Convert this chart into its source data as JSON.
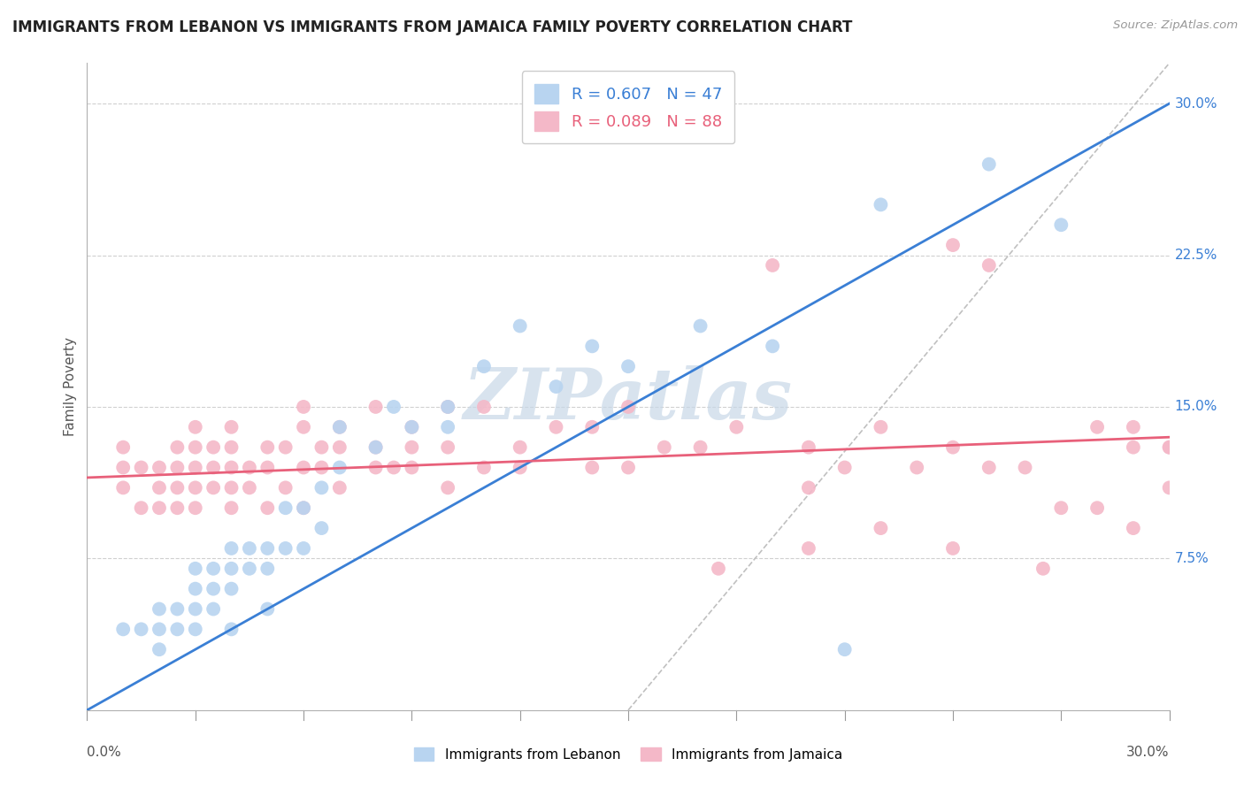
{
  "title": "IMMIGRANTS FROM LEBANON VS IMMIGRANTS FROM JAMAICA FAMILY POVERTY CORRELATION CHART",
  "source": "Source: ZipAtlas.com",
  "ylabel": "Family Poverty",
  "right_yticks": [
    "7.5%",
    "15.0%",
    "22.5%",
    "30.0%"
  ],
  "right_ytick_vals": [
    0.075,
    0.15,
    0.225,
    0.3
  ],
  "xlim": [
    0.0,
    0.3
  ],
  "ylim": [
    0.0,
    0.32
  ],
  "color_lebanon": "#b8d4f0",
  "color_jamaica": "#f4b8c8",
  "color_lebanon_line": "#3a7fd5",
  "color_jamaica_line": "#e8607a",
  "color_grid": "#d0d0d0",
  "watermark_color": "#c8d8e8",
  "lebanon_x": [
    0.01,
    0.015,
    0.02,
    0.02,
    0.02,
    0.025,
    0.025,
    0.03,
    0.03,
    0.03,
    0.03,
    0.035,
    0.035,
    0.035,
    0.04,
    0.04,
    0.04,
    0.04,
    0.045,
    0.045,
    0.05,
    0.05,
    0.05,
    0.055,
    0.055,
    0.06,
    0.06,
    0.065,
    0.065,
    0.07,
    0.07,
    0.08,
    0.085,
    0.09,
    0.1,
    0.1,
    0.11,
    0.12,
    0.13,
    0.14,
    0.15,
    0.17,
    0.19,
    0.21,
    0.22,
    0.25,
    0.27
  ],
  "lebanon_y": [
    0.04,
    0.04,
    0.04,
    0.05,
    0.03,
    0.04,
    0.05,
    0.04,
    0.05,
    0.06,
    0.07,
    0.05,
    0.06,
    0.07,
    0.06,
    0.07,
    0.08,
    0.04,
    0.07,
    0.08,
    0.07,
    0.08,
    0.05,
    0.08,
    0.1,
    0.08,
    0.1,
    0.09,
    0.11,
    0.12,
    0.14,
    0.13,
    0.15,
    0.14,
    0.15,
    0.14,
    0.17,
    0.19,
    0.16,
    0.18,
    0.17,
    0.19,
    0.18,
    0.03,
    0.25,
    0.27,
    0.24
  ],
  "jamaica_x": [
    0.01,
    0.01,
    0.01,
    0.015,
    0.015,
    0.02,
    0.02,
    0.02,
    0.025,
    0.025,
    0.025,
    0.025,
    0.03,
    0.03,
    0.03,
    0.03,
    0.03,
    0.035,
    0.035,
    0.035,
    0.04,
    0.04,
    0.04,
    0.04,
    0.04,
    0.045,
    0.045,
    0.05,
    0.05,
    0.05,
    0.055,
    0.055,
    0.06,
    0.06,
    0.06,
    0.06,
    0.065,
    0.065,
    0.07,
    0.07,
    0.07,
    0.08,
    0.08,
    0.08,
    0.085,
    0.09,
    0.09,
    0.09,
    0.1,
    0.1,
    0.1,
    0.11,
    0.11,
    0.12,
    0.12,
    0.13,
    0.14,
    0.14,
    0.15,
    0.15,
    0.16,
    0.17,
    0.18,
    0.19,
    0.2,
    0.2,
    0.21,
    0.22,
    0.23,
    0.24,
    0.24,
    0.25,
    0.25,
    0.26,
    0.27,
    0.28,
    0.28,
    0.29,
    0.29,
    0.3,
    0.3,
    0.175,
    0.2,
    0.22,
    0.24,
    0.265,
    0.29,
    0.3
  ],
  "jamaica_y": [
    0.11,
    0.12,
    0.13,
    0.1,
    0.12,
    0.1,
    0.11,
    0.12,
    0.1,
    0.11,
    0.12,
    0.13,
    0.1,
    0.11,
    0.12,
    0.13,
    0.14,
    0.11,
    0.12,
    0.13,
    0.1,
    0.11,
    0.12,
    0.13,
    0.14,
    0.11,
    0.12,
    0.1,
    0.12,
    0.13,
    0.11,
    0.13,
    0.1,
    0.12,
    0.14,
    0.15,
    0.12,
    0.13,
    0.11,
    0.13,
    0.14,
    0.12,
    0.13,
    0.15,
    0.12,
    0.12,
    0.13,
    0.14,
    0.11,
    0.13,
    0.15,
    0.12,
    0.15,
    0.12,
    0.13,
    0.14,
    0.12,
    0.14,
    0.12,
    0.15,
    0.13,
    0.13,
    0.14,
    0.22,
    0.11,
    0.13,
    0.12,
    0.14,
    0.12,
    0.13,
    0.23,
    0.12,
    0.22,
    0.12,
    0.1,
    0.14,
    0.1,
    0.13,
    0.14,
    0.11,
    0.13,
    0.07,
    0.08,
    0.09,
    0.08,
    0.07,
    0.09,
    0.13
  ],
  "lb_line_x0": 0.0,
  "lb_line_y0": 0.0,
  "lb_line_x1": 0.3,
  "lb_line_y1": 0.3,
  "jm_line_x0": 0.0,
  "jm_line_y0": 0.115,
  "jm_line_x1": 0.3,
  "jm_line_y1": 0.135,
  "dashed_line_x0": 0.15,
  "dashed_line_y0": 0.0,
  "dashed_line_x1": 0.3,
  "dashed_line_y1": 0.32
}
